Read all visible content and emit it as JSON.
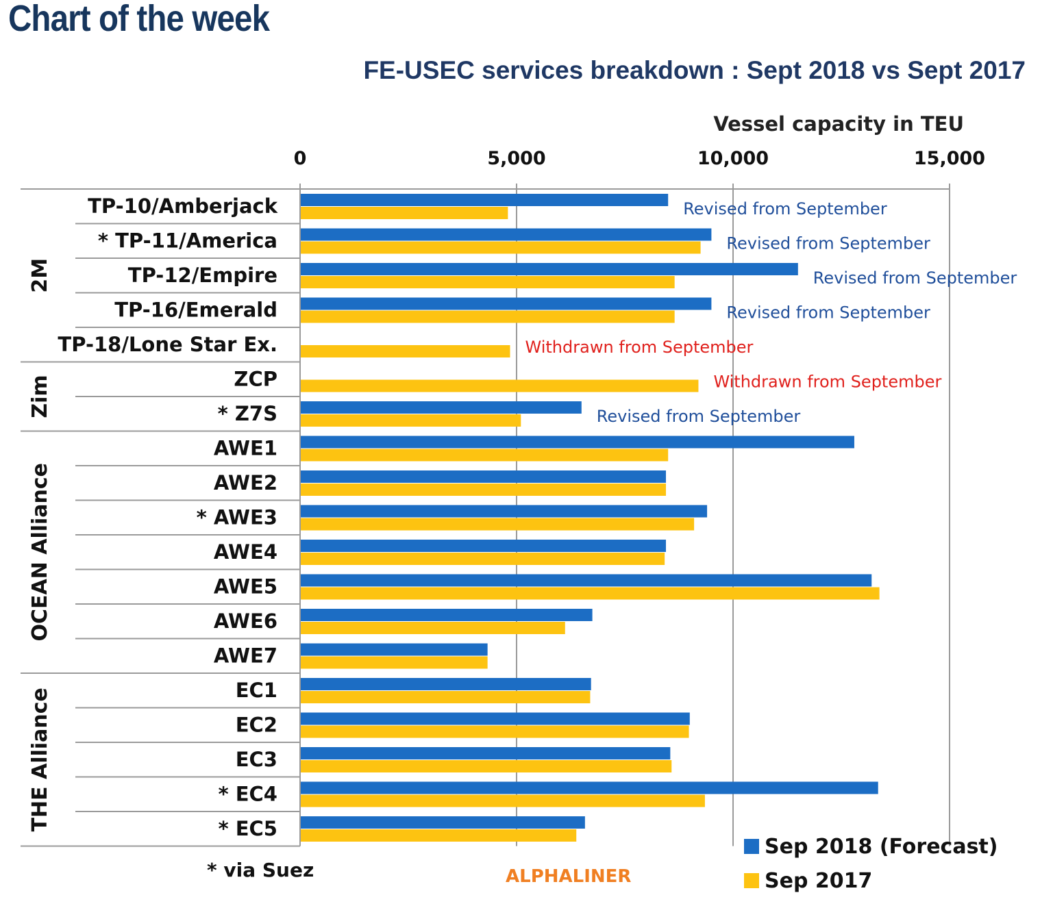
{
  "page": {
    "heading": "Chart of the week",
    "footnote": "* via Suez",
    "source": "ALPHALINER"
  },
  "colors": {
    "sep2018": "#1c6dc4",
    "sep2017": "#fdc311",
    "revised": "#1f4e9a",
    "withdrawn": "#e0201c",
    "heading": "#17365d"
  },
  "chart_data": {
    "type": "bar",
    "orientation": "horizontal",
    "title": "FE-USEC services breakdown : Sept 2018 vs Sept 2017",
    "xlabel": "Vessel capacity in TEU",
    "xlim": [
      0,
      15000
    ],
    "xticks": [
      0,
      5000,
      10000,
      15000
    ],
    "xtick_labels": [
      "0",
      "5,000",
      "10,000",
      "15,000"
    ],
    "grid": "vertical",
    "legend_position": "bottom-right",
    "groups": [
      {
        "name": "2M",
        "categories": [
          "TP-10/Amberjack",
          "* TP-11/America",
          "TP-12/Empire",
          "TP-16/Emerald",
          "TP-18/Lone Star Ex."
        ]
      },
      {
        "name": "Zim",
        "categories": [
          "ZCP",
          "* Z7S"
        ]
      },
      {
        "name": "OCEAN Alliance",
        "categories": [
          "AWE1",
          "AWE2",
          "* AWE3",
          "AWE4",
          "AWE5",
          "AWE6",
          "AWE7"
        ]
      },
      {
        "name": "THE Alliance",
        "categories": [
          "EC1",
          "EC2",
          "EC3",
          "* EC4",
          "* EC5"
        ]
      }
    ],
    "categories": [
      "TP-10/Amberjack",
      "* TP-11/America",
      "TP-12/Empire",
      "TP-16/Emerald",
      "TP-18/Lone Star Ex.",
      "ZCP",
      "* Z7S",
      "AWE1",
      "AWE2",
      "* AWE3",
      "AWE4",
      "AWE5",
      "AWE6",
      "AWE7",
      "EC1",
      "EC2",
      "EC3",
      "* EC4",
      "* EC5"
    ],
    "series": [
      {
        "name": "Sep 2018 (Forecast)",
        "values": [
          8500,
          9500,
          11500,
          9500,
          null,
          null,
          6500,
          12800,
          8450,
          9400,
          8450,
          13200,
          6750,
          4330,
          6720,
          9000,
          8550,
          13350,
          6580
        ]
      },
      {
        "name": "Sep 2017",
        "values": [
          4800,
          9250,
          8650,
          8650,
          4850,
          9200,
          5100,
          8500,
          8450,
          9100,
          8420,
          13380,
          6120,
          4330,
          6700,
          8980,
          8580,
          9350,
          6380
        ]
      }
    ],
    "annotations": [
      {
        "category": "TP-10/Amberjack",
        "text": "Revised from September",
        "type": "revised"
      },
      {
        "category": "* TP-11/America",
        "text": "Revised from September",
        "type": "revised"
      },
      {
        "category": "TP-12/Empire",
        "text": "Revised from September",
        "type": "revised"
      },
      {
        "category": "TP-16/Emerald",
        "text": "Revised from September",
        "type": "revised"
      },
      {
        "category": "TP-18/Lone Star Ex.",
        "text": "Withdrawn from September",
        "type": "withdrawn"
      },
      {
        "category": "ZCP",
        "text": "Withdrawn from September",
        "type": "withdrawn"
      },
      {
        "category": "* Z7S",
        "text": "Revised from September",
        "type": "revised"
      }
    ]
  }
}
